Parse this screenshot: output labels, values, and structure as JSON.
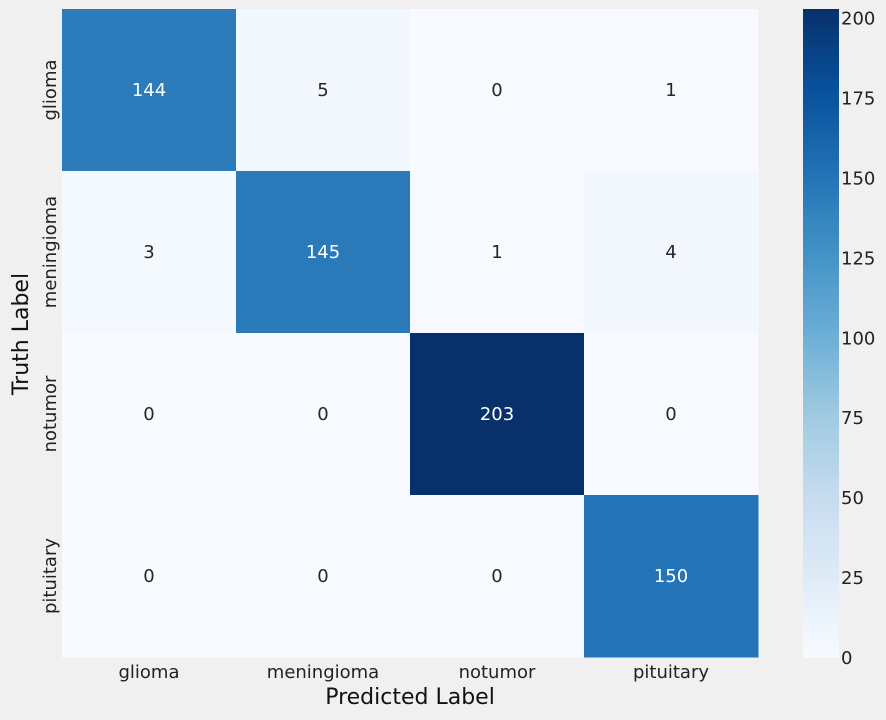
{
  "chart_data": {
    "type": "heatmap",
    "title": "",
    "xlabel": "Predicted Label",
    "ylabel": "Truth Label",
    "x_categories": [
      "glioma",
      "meningioma",
      "notumor",
      "pituitary"
    ],
    "y_categories": [
      "glioma",
      "meningioma",
      "notumor",
      "pituitary"
    ],
    "matrix": [
      [
        144,
        5,
        0,
        1
      ],
      [
        3,
        145,
        1,
        4
      ],
      [
        0,
        0,
        203,
        0
      ],
      [
        0,
        0,
        0,
        150
      ]
    ],
    "colormap": "Blues",
    "colorbar": {
      "min": 0,
      "max": 203,
      "ticks": [
        0,
        25,
        50,
        75,
        100,
        125,
        150,
        175,
        200
      ]
    },
    "grid": false
  },
  "colors": {
    "background": "#f0f0f0",
    "cmap_low": "#f7fbff",
    "cmap_high": "#08306b",
    "text_dark": "#262626",
    "text_light": "#ffffff"
  }
}
